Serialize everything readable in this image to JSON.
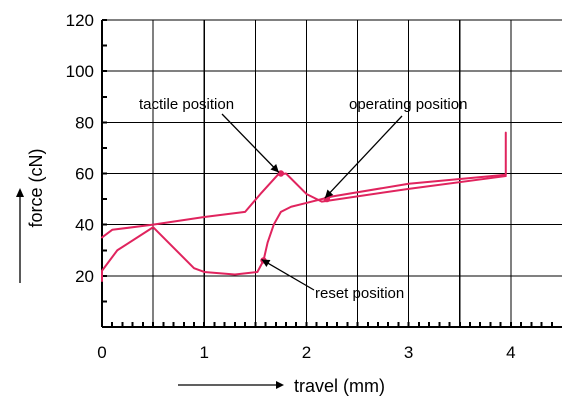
{
  "chart_data": {
    "type": "line",
    "title": "",
    "xlabel": "travel (mm)",
    "ylabel": "force (cN)",
    "xlim": [
      0,
      4.5
    ],
    "ylim": [
      0,
      120
    ],
    "xticks": [
      0,
      1,
      2,
      3,
      4
    ],
    "yticks": [
      20,
      40,
      60,
      80,
      100,
      120
    ],
    "grid": true,
    "series": [
      {
        "color": "#e0245e",
        "x": [
          0,
          0.1,
          0.5,
          1.0,
          1.4,
          1.55,
          1.72,
          1.8,
          2.0,
          2.15,
          3.0,
          3.95
        ],
        "y": [
          35,
          38,
          40,
          43,
          45,
          52,
          59.5,
          60,
          52,
          49,
          54,
          59
        ]
      },
      {
        "color": "#e0245e",
        "x": [
          3.95,
          3.95,
          3.95,
          3.0,
          2.25,
          2.0,
          1.85,
          1.75,
          1.68,
          1.62,
          1.58,
          1.52,
          1.3,
          1.0,
          0.9,
          0.5,
          0.15,
          0.0,
          0.0
        ],
        "y": [
          76,
          60,
          59.5,
          56,
          51,
          48.5,
          47,
          45,
          40,
          33,
          26,
          21.5,
          20.5,
          21.5,
          23,
          39,
          30,
          22,
          18
        ]
      }
    ],
    "annotations": [
      {
        "text": "tactile position",
        "x": 1.75,
        "y": 60
      },
      {
        "text": "operating position",
        "x": 2.2,
        "y": 50
      },
      {
        "text": "reset position",
        "x": 1.58,
        "y": 26
      }
    ]
  }
}
